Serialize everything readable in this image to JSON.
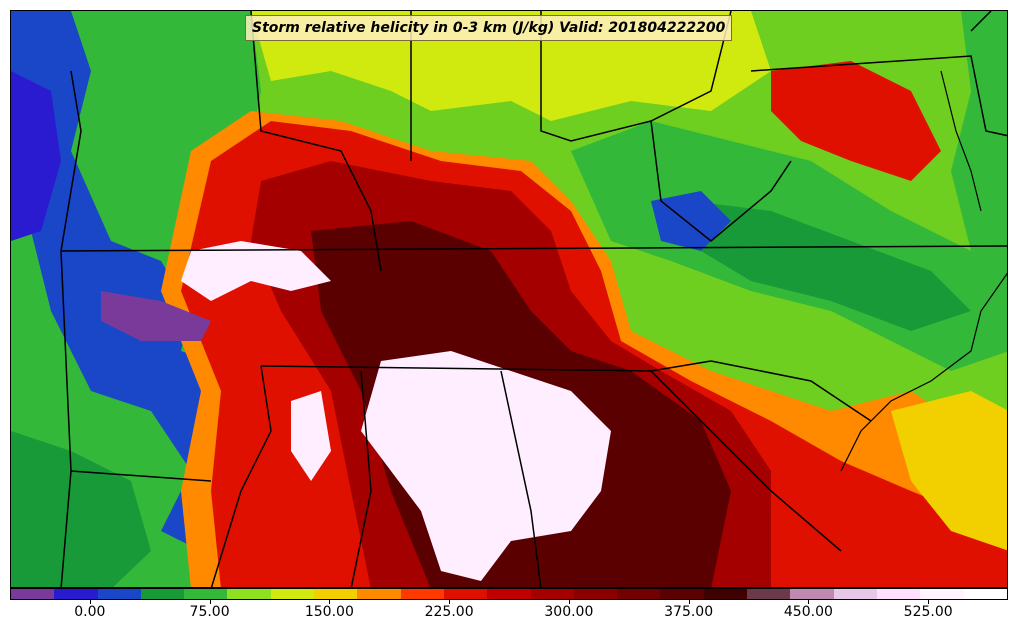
{
  "title": "Storm relative helicity in 0-3 km (J/kg) Valid: 201804222200",
  "colorbar": {
    "colors": [
      "#7a3a9a",
      "#2a1ad0",
      "#1a46c8",
      "#189a38",
      "#33b83a",
      "#8fe020",
      "#d0ea10",
      "#f2d000",
      "#ff8a00",
      "#ff3a00",
      "#e01000",
      "#c00000",
      "#a40000",
      "#8a0000",
      "#720000",
      "#5a0000",
      "#3e0000",
      "#6a3a4a",
      "#c08ab0",
      "#e8c8e8",
      "#ffe0ff",
      "#fff4ff",
      "#ffffff"
    ],
    "tick_labels": [
      "0.00",
      "75.00",
      "150.00",
      "225.00",
      "300.00",
      "375.00",
      "450.00",
      "525.00"
    ],
    "tick_values": [
      0,
      75,
      150,
      225,
      300,
      375,
      450,
      525
    ],
    "min": -50,
    "max": 575
  },
  "field_palette": {
    "white": "#ffeeff",
    "purple": "#7a3a9a",
    "deep_blue": "#2a1ad0",
    "blue": "#1a46c8",
    "dkgreen": "#189a38",
    "green": "#33b83a",
    "lime": "#8fe020",
    "yellow": "#f2d000",
    "orange": "#ff8a00",
    "red": "#e01000",
    "maroon": "#a40000",
    "dkmaroon": "#5a0000"
  }
}
